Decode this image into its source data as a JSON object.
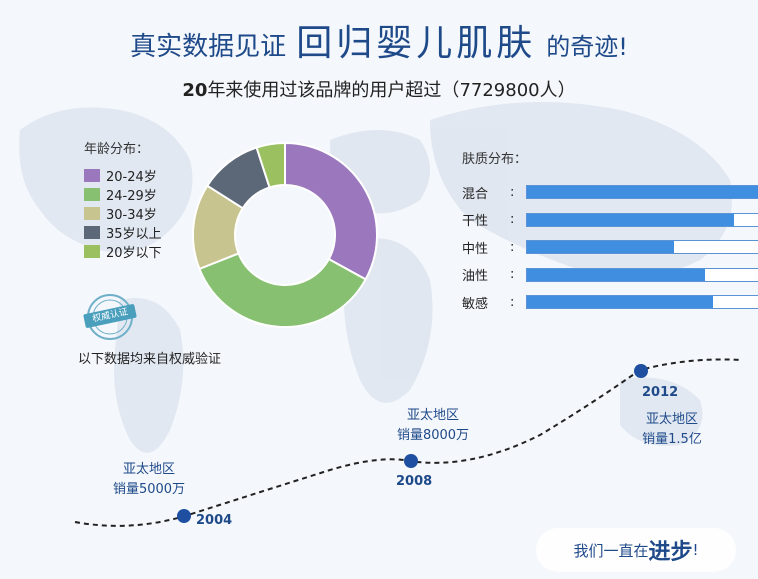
{
  "header": {
    "title_part1": "真实数据见证",
    "title_part2": "回归婴儿肌肤",
    "title_part3": "的奇迹!",
    "subtitle_prefix": "20",
    "subtitle_text": "年来使用过该品牌的用户超过（",
    "subtitle_count": "7729800",
    "subtitle_suffix": "人）"
  },
  "colors": {
    "title": "#1f4a8a",
    "bar_fill": "#3f8ee0",
    "bar_border": "#5b93d6",
    "timeline_dot": "#1f4fa0"
  },
  "badge": {
    "text": "权威认证"
  },
  "source_note": "以下数据均来自权威验证",
  "motto": {
    "prefix": "我们一直在",
    "emphasis": "进步",
    "suffix": "!"
  },
  "chart_data": [
    {
      "type": "pie",
      "variant": "donut",
      "title": "年龄分布：",
      "legend_placement": "left",
      "categories": [
        "20-24岁",
        "24-29岁",
        "30-34岁",
        "35岁以上",
        "20岁以下"
      ],
      "values": [
        33,
        36,
        15,
        11,
        5
      ],
      "colors": [
        "#9b78bd",
        "#86c070",
        "#c7c48f",
        "#5c6878",
        "#9bc060"
      ]
    },
    {
      "type": "bar",
      "orientation": "horizontal",
      "title": "肤质分布：",
      "categories": [
        "混合",
        "干性",
        "中性",
        "油性",
        "敏感"
      ],
      "values": [
        0.89,
        0.79,
        0.56,
        0.68,
        0.71
      ],
      "xlim": [
        0,
        1
      ],
      "grid": false
    },
    {
      "type": "line",
      "title": "",
      "points": [
        {
          "year": "2004",
          "region": "亚太地区",
          "sales": "销量5000万"
        },
        {
          "year": "2008",
          "region": "亚太地区",
          "sales": "销量8000万"
        },
        {
          "year": "2012",
          "region": "亚太地区",
          "sales": "销量1.5亿"
        }
      ]
    }
  ]
}
